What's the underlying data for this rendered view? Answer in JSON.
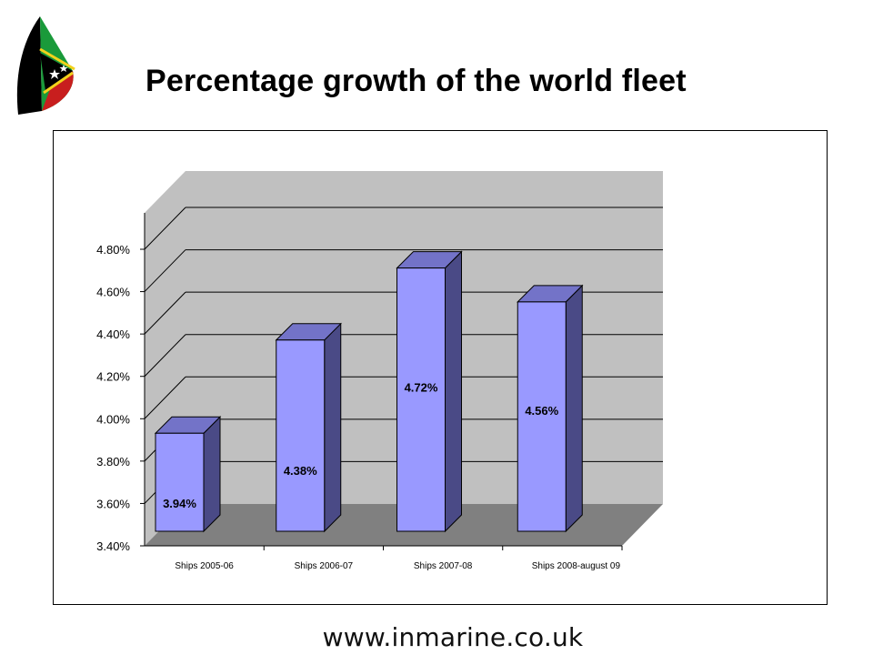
{
  "page": {
    "title": "Percentage growth of the world fleet",
    "footer_url": "www.inmarine.co.uk",
    "logo_icon": "sailboat-flag-logo-icon"
  },
  "colors": {
    "bar_front": "#9999ff",
    "bar_side": "#4a4a86",
    "bar_top": "#7373c8",
    "wall": "#c0c0c0",
    "floor": "#808080",
    "gridline": "#000000"
  },
  "chart_data": {
    "type": "bar",
    "style": "3d-column",
    "categories": [
      "Ships 2005-06",
      "Ships 2006-07",
      "Ships 2007-08",
      "Ships 2008-august 09"
    ],
    "values": [
      3.94,
      4.38,
      4.72,
      4.56
    ],
    "data_labels": [
      "3.94%",
      "4.38%",
      "4.72%",
      "4.56%"
    ],
    "ylim": [
      3.4,
      4.8
    ],
    "yticks": [
      3.4,
      3.6,
      3.8,
      4.0,
      4.2,
      4.4,
      4.6,
      4.8
    ],
    "ytick_labels": [
      "3.40%",
      "3.60%",
      "3.80%",
      "4.00%",
      "4.20%",
      "4.40%",
      "4.60%",
      "4.80%"
    ],
    "title": "",
    "xlabel": "",
    "ylabel": "",
    "grid": true,
    "legend": "none"
  }
}
